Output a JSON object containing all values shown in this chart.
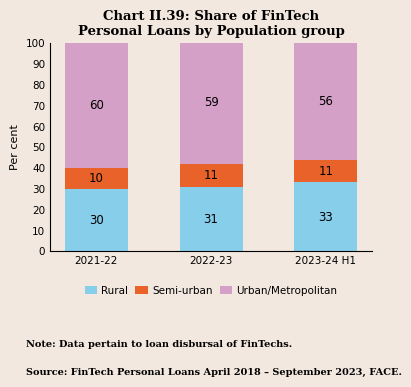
{
  "title": "Chart II.39: Share of FinTech\nPersonal Loans by Population group",
  "categories": [
    "2021-22",
    "2022-23",
    "2023-24 H1"
  ],
  "rural": [
    30,
    31,
    33
  ],
  "semi_urban": [
    10,
    11,
    11
  ],
  "urban": [
    60,
    59,
    56
  ],
  "rural_color": "#87CEEB",
  "semi_urban_color": "#E8622A",
  "urban_color": "#D4A0C8",
  "ylabel": "Per cent",
  "ylim": [
    0,
    100
  ],
  "yticks": [
    0,
    10,
    20,
    30,
    40,
    50,
    60,
    70,
    80,
    90,
    100
  ],
  "legend_labels": [
    "Rural",
    "Semi-urban",
    "Urban/Metropolitan"
  ],
  "note_line1": "Note: Data pertain to loan disbursal of FinTechs.",
  "note_line2": "Source: FinTech Personal Loans April 2018 – September 2023, FACE.",
  "background_color": "#F2E8DF",
  "bar_width": 0.55,
  "title_fontsize": 9.5,
  "label_fontsize": 8,
  "tick_fontsize": 7.5,
  "note_fontsize": 7.0,
  "bar_label_fontsize": 8.5
}
